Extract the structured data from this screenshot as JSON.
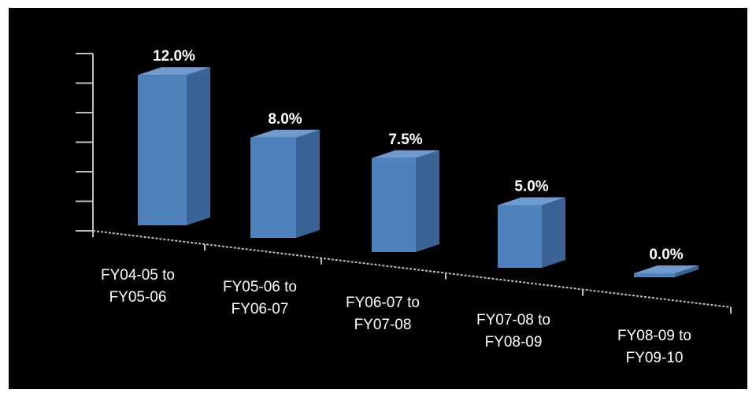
{
  "chart_data": {
    "type": "bar",
    "categories": [
      [
        "FY04-05 to",
        "FY05-06"
      ],
      [
        "FY05-06 to",
        "FY06-07"
      ],
      [
        "FY06-07 to",
        "FY07-08"
      ],
      [
        "FY07-08 to",
        "FY08-09"
      ],
      [
        "FY08-09 to",
        "FY09-10"
      ]
    ],
    "values": [
      12.0,
      8.0,
      7.5,
      5.0,
      0.0
    ],
    "data_labels": [
      "12.0%",
      "8.0%",
      "7.5%",
      "5.0%",
      "0.0%"
    ],
    "ylim": [
      0,
      12
    ],
    "grid": false,
    "legend": "none",
    "colors": {
      "background": "#000000",
      "bar_front": "#4f81bd",
      "bar_side": "#3a6496",
      "bar_top": "#6f9bd1",
      "axis": "#bfbfbf",
      "text": "#ffffff"
    }
  }
}
